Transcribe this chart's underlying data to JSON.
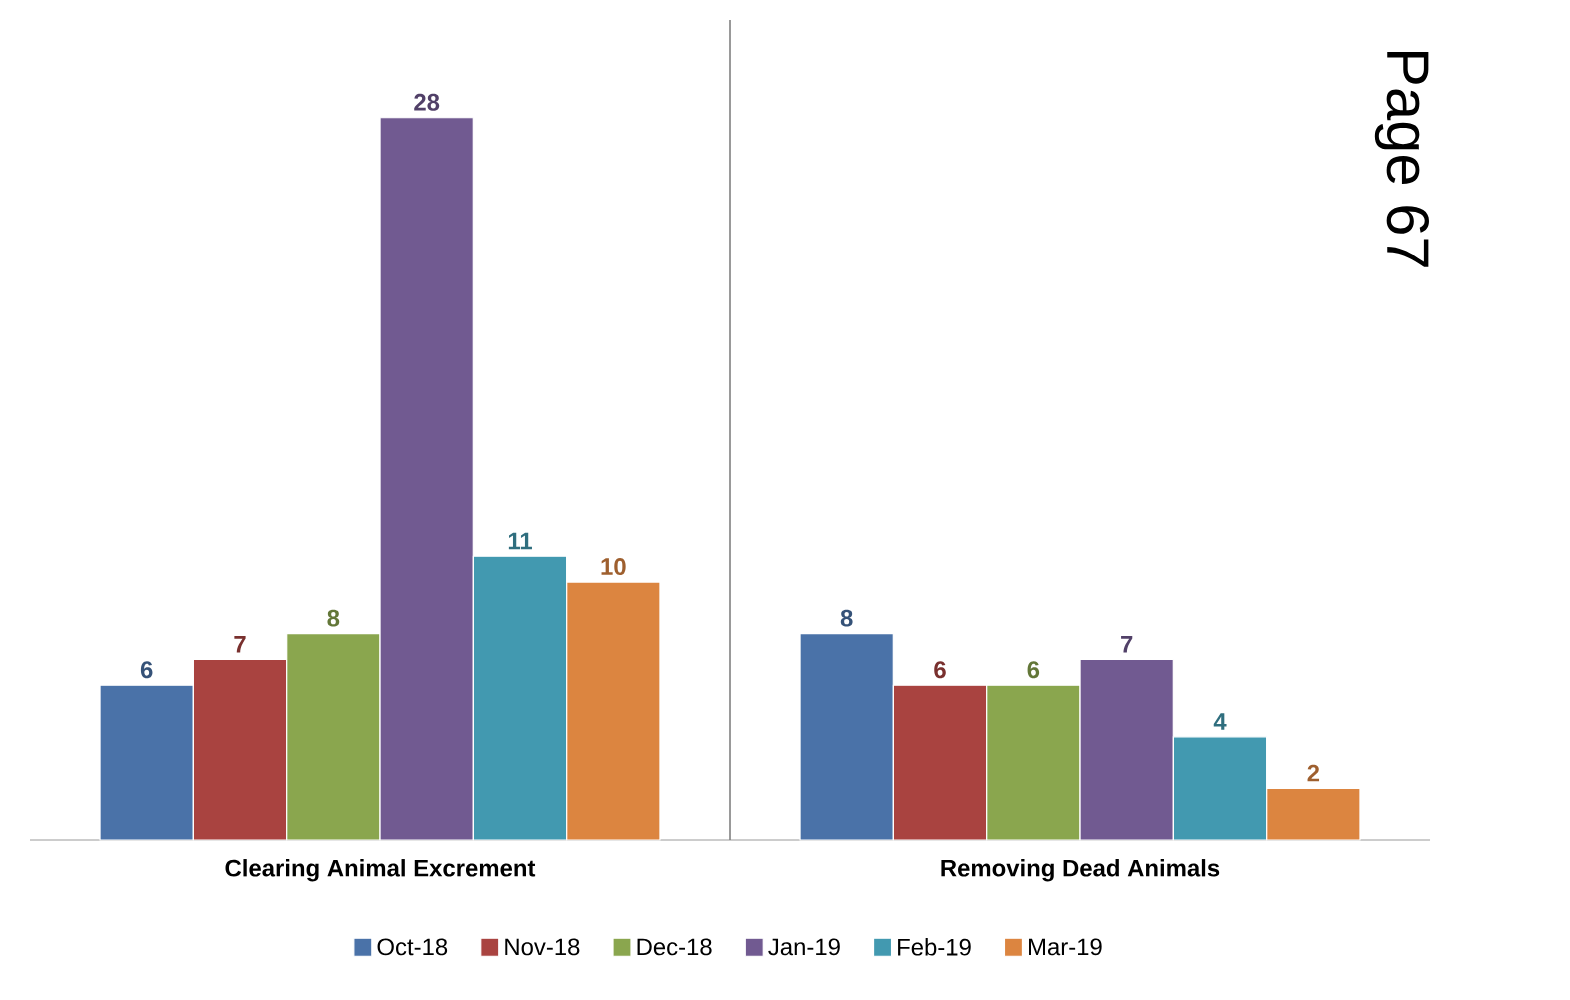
{
  "chart_data": {
    "type": "bar",
    "categories": [
      "Clearing Animal Excrement",
      "Removing Dead Animals"
    ],
    "series": [
      {
        "name": "Oct-18",
        "color": "#4a72a8",
        "values": [
          6,
          8
        ]
      },
      {
        "name": "Nov-18",
        "color": "#a94340",
        "values": [
          7,
          6
        ]
      },
      {
        "name": "Dec-18",
        "color": "#8aa64e",
        "values": [
          8,
          6
        ]
      },
      {
        "name": "Jan-19",
        "color": "#715a91",
        "values": [
          28,
          7
        ]
      },
      {
        "name": "Feb-19",
        "color": "#4299b0",
        "values": [
          11,
          4
        ]
      },
      {
        "name": "Mar-19",
        "color": "#dc8540",
        "values": [
          10,
          2
        ]
      }
    ],
    "data_labels": true,
    "legend": "bottom",
    "annotations": [
      "Page 67"
    ]
  }
}
